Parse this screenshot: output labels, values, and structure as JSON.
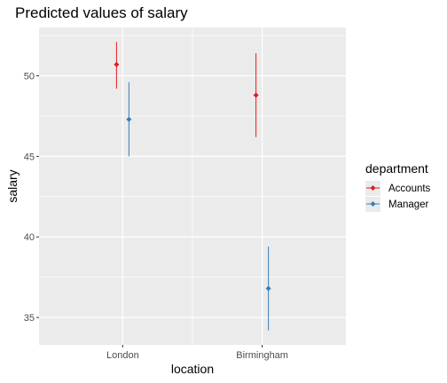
{
  "chart_data": {
    "type": "scatter",
    "title": "Predicted values of salary",
    "xlabel": "location",
    "ylabel": "salary",
    "categories": [
      "London",
      "Birmingham"
    ],
    "ylim": [
      33.3,
      53.0
    ],
    "yticks": [
      35,
      40,
      45,
      50
    ],
    "grid": true,
    "legend": {
      "title": "department",
      "placement": "right"
    },
    "series": [
      {
        "name": "Accounts",
        "color": "#e41a1c",
        "values": [
          50.7,
          48.8
        ],
        "lower": [
          49.2,
          46.2
        ],
        "upper": [
          52.1,
          51.4
        ]
      },
      {
        "name": "Manager",
        "color": "#377eb8",
        "values": [
          47.3,
          36.8
        ],
        "lower": [
          45.0,
          34.2
        ],
        "upper": [
          49.6,
          39.4
        ]
      }
    ]
  }
}
